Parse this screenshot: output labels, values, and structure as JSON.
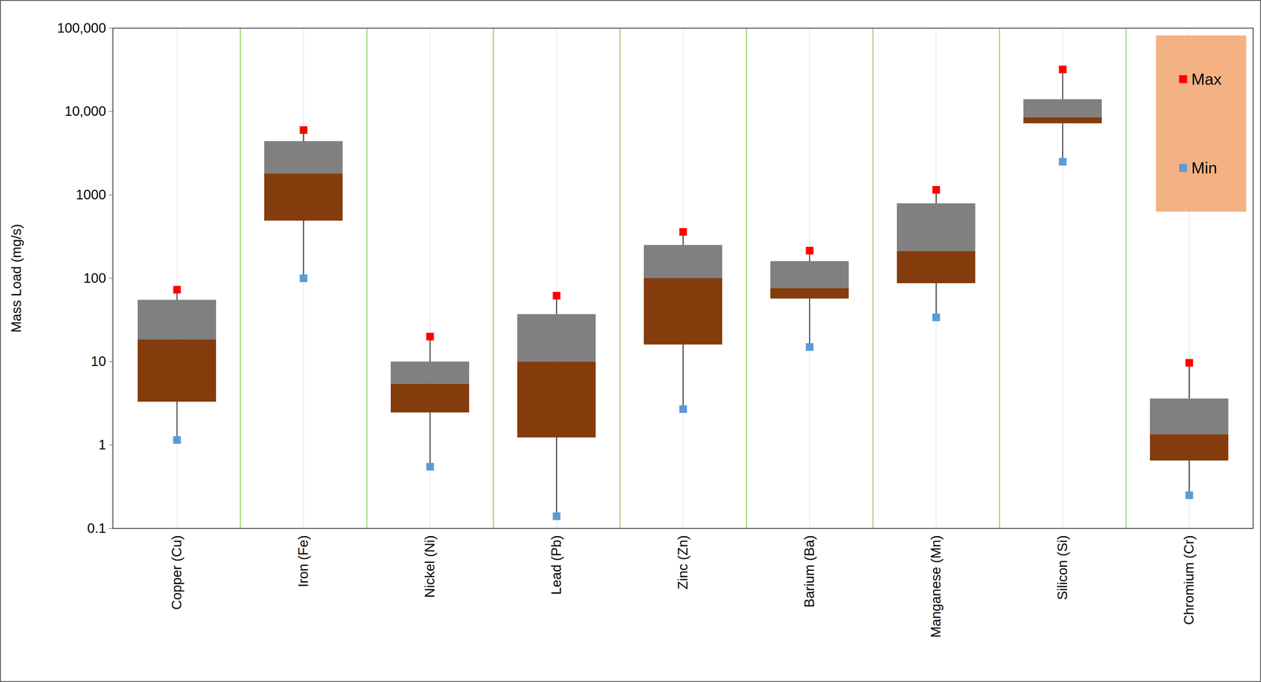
{
  "chart_data": {
    "type": "box",
    "y_label": "Mass Load (mg/s)",
    "categories": [
      "Copper (Cu)",
      "Iron (Fe)",
      "Nickel (Ni)",
      "Lead (Pb)",
      "Zinc (Zn)",
      "Barium (Ba)",
      "Manganese (Mn)",
      "Silicon (Si)",
      "Chromium (Cr)"
    ],
    "q1": [
      3.3,
      490,
      2.45,
      1.23,
      16,
      57,
      87,
      7200,
      0.65
    ],
    "median": [
      18.5,
      1800,
      5.4,
      10,
      100,
      76,
      212,
      8500,
      1.34
    ],
    "q3": [
      55,
      4400,
      10,
      37,
      250,
      160,
      790,
      14000,
      3.6
    ],
    "series": [
      {
        "name": "Max",
        "color": "#ff0000",
        "marker": "square",
        "values": [
          73,
          6000,
          20,
          62,
          360,
          215,
          1150,
          32000,
          9.7
        ]
      },
      {
        "name": "Min",
        "color": "#5b9bd5",
        "marker": "square",
        "values": [
          1.15,
          100,
          0.55,
          0.14,
          2.7,
          15,
          34,
          2500,
          0.25
        ]
      }
    ],
    "log": "y",
    "ylim": [
      0.1,
      100000
    ],
    "yticks": [
      0.1,
      1,
      10,
      100,
      1000,
      {
        "value": 10000,
        "label": "10,000"
      },
      {
        "value": 100000,
        "label": "100,000"
      }
    ],
    "grid": true,
    "legend": "top-right"
  }
}
